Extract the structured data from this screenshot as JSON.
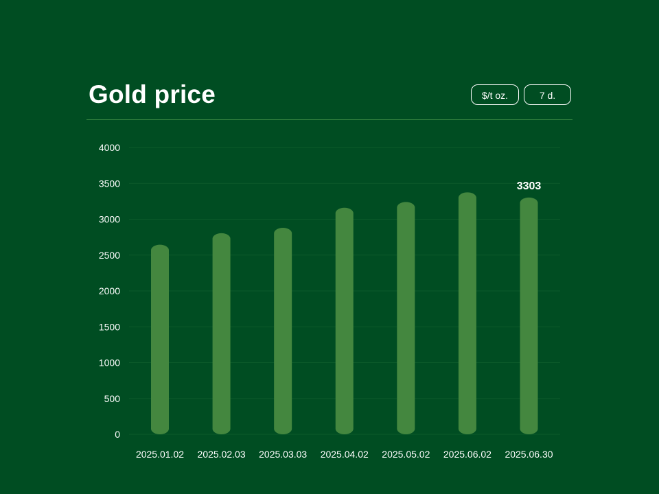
{
  "header": {
    "title": "Gold price",
    "unit_button": "$/t oz.",
    "range_button": "7 d."
  },
  "colors": {
    "background": "#004d22",
    "bar": "#44873f",
    "divider": "#3c8a45",
    "text": "#ffffff"
  },
  "chart_data": {
    "type": "bar",
    "title": "Gold price",
    "categories": [
      "2025.01.02",
      "2025.02.03",
      "2025.03.03",
      "2025.04.02",
      "2025.05.02",
      "2025.06.02",
      "2025.06.30"
    ],
    "values": [
      2645,
      2805,
      2880,
      3160,
      3240,
      3375,
      3303
    ],
    "ylim": [
      0,
      4000
    ],
    "yticks": [
      0,
      500,
      1000,
      1500,
      2000,
      2500,
      3000,
      3500,
      4000
    ],
    "grid": true,
    "data_labels": [
      {
        "category": "2025.06.30",
        "text": "3303"
      }
    ]
  }
}
